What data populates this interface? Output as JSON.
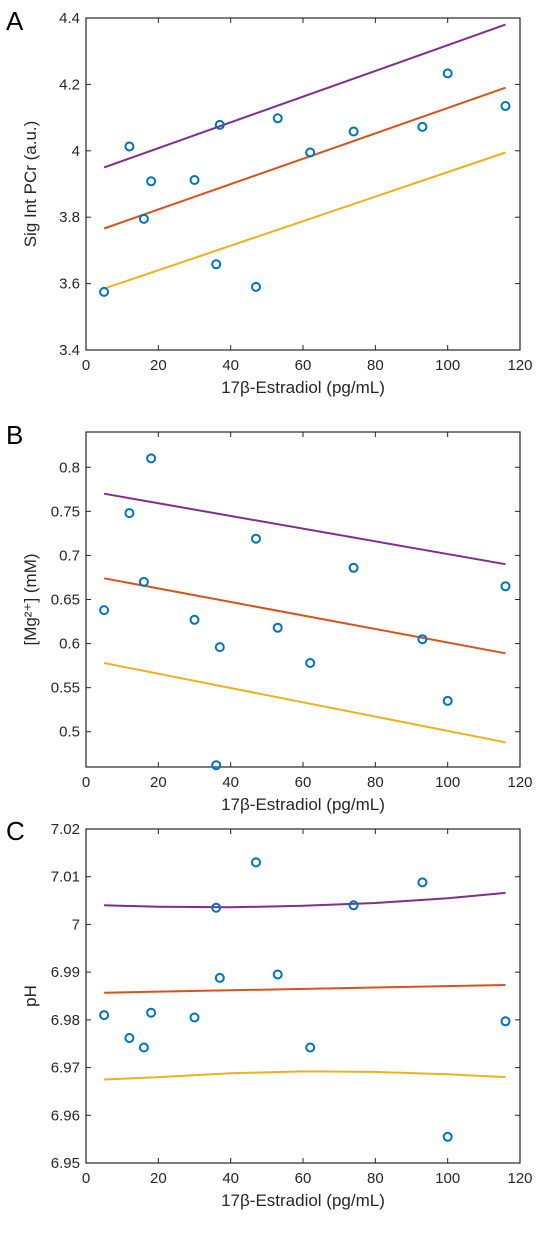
{
  "chart_data": [
    {
      "panel": "A",
      "type": "scatter",
      "xlabel": "17β-Estradiol (pg/mL)",
      "ylabel": "Sig Int PCr    (a.u.)",
      "xlim": [
        0,
        120
      ],
      "ylim": [
        3.4,
        4.4
      ],
      "xticks": [
        0,
        20,
        40,
        60,
        80,
        100,
        120
      ],
      "yticks": [
        3.4,
        3.6,
        3.8,
        4,
        4.2,
        4.4
      ],
      "ytick_labels": [
        "3.4",
        "3.6",
        "3.8",
        "4",
        "4.2",
        "4.4"
      ],
      "points": {
        "x": [
          5,
          12,
          16,
          18,
          30,
          36,
          37,
          47,
          53,
          62,
          74,
          93,
          100,
          116
        ],
        "y": [
          3.575,
          4.013,
          3.795,
          3.908,
          3.912,
          3.658,
          4.078,
          3.59,
          4.098,
          3.995,
          4.058,
          4.072,
          4.233,
          4.135
        ]
      },
      "fit": {
        "x": [
          5,
          116
        ],
        "y": [
          3.766,
          4.19
        ]
      },
      "ci_upper": {
        "x": [
          5,
          116
        ],
        "y": [
          3.95,
          4.38
        ]
      },
      "ci_lower": {
        "x": [
          5,
          116
        ],
        "y": [
          3.585,
          3.995
        ]
      },
      "grid": false
    },
    {
      "panel": "B",
      "type": "scatter",
      "xlabel": "17β-Estradiol (pg/mL)",
      "ylabel": "[Mg²⁺] (mM)",
      "xlim": [
        0,
        120
      ],
      "ylim": [
        0.46,
        0.84
      ],
      "xticks": [
        0,
        20,
        40,
        60,
        80,
        100,
        120
      ],
      "yticks": [
        0.5,
        0.55,
        0.6,
        0.65,
        0.7,
        0.75,
        0.8
      ],
      "ytick_labels": [
        "0.5",
        "0.55",
        "0.6",
        "0.65",
        "0.7",
        "0.75",
        "0.8"
      ],
      "points": {
        "x": [
          5,
          12,
          16,
          18,
          30,
          36,
          37,
          47,
          53,
          62,
          74,
          93,
          100,
          116
        ],
        "y": [
          0.638,
          0.748,
          0.67,
          0.81,
          0.627,
          0.462,
          0.596,
          0.719,
          0.618,
          0.578,
          0.686,
          0.605,
          0.535,
          0.665
        ]
      },
      "fit": {
        "x": [
          5,
          116
        ],
        "y": [
          0.674,
          0.589
        ]
      },
      "ci_upper": {
        "x": [
          5,
          116
        ],
        "y": [
          0.77,
          0.69
        ]
      },
      "ci_lower": {
        "x": [
          5,
          116
        ],
        "y": [
          0.578,
          0.488
        ]
      },
      "grid": false
    },
    {
      "panel": "C",
      "type": "scatter",
      "xlabel": "17β-Estradiol (pg/mL)",
      "ylabel": "pH",
      "xlim": [
        0,
        120
      ],
      "ylim": [
        6.95,
        7.02
      ],
      "xticks": [
        0,
        20,
        40,
        60,
        80,
        100,
        120
      ],
      "yticks": [
        6.95,
        6.96,
        6.97,
        6.98,
        6.99,
        7,
        7.01,
        7.02
      ],
      "ytick_labels": [
        "6.95",
        "6.96",
        "6.97",
        "6.98",
        "6.99",
        "7",
        "7.01",
        "7.02"
      ],
      "points": {
        "x": [
          5,
          12,
          16,
          18,
          30,
          36,
          37,
          47,
          53,
          62,
          74,
          93,
          100,
          116
        ],
        "y": [
          6.981,
          6.9762,
          6.9742,
          6.9815,
          6.9805,
          7.0035,
          6.9888,
          7.013,
          6.9895,
          6.9742,
          7.004,
          7.0088,
          6.9555,
          6.9797
        ]
      },
      "fit": {
        "x": [
          5,
          116
        ],
        "y": [
          6.9857,
          6.9873
        ]
      },
      "ci_upper": {
        "x": [
          5,
          20,
          40,
          60,
          80,
          100,
          116
        ],
        "y": [
          7.004,
          7.0037,
          7.0036,
          7.0039,
          7.0045,
          7.0055,
          7.0066
        ]
      },
      "ci_lower": {
        "x": [
          5,
          20,
          40,
          60,
          80,
          100,
          116
        ],
        "y": [
          6.9675,
          6.968,
          6.9688,
          6.9692,
          6.9691,
          6.9686,
          6.968
        ]
      },
      "grid": false
    }
  ]
}
